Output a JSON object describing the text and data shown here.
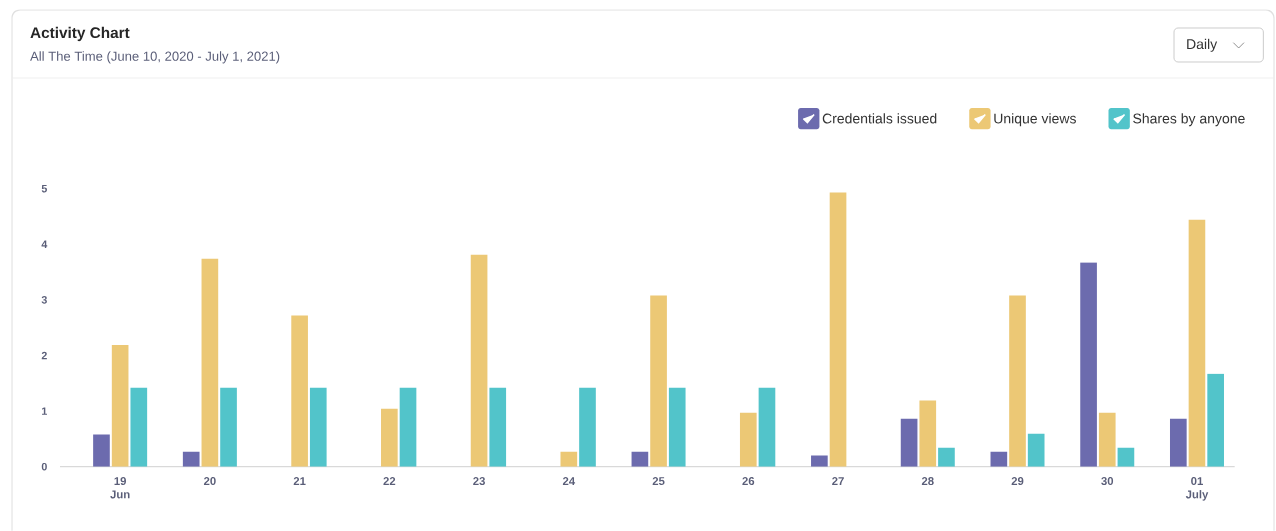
{
  "chart_data": {
    "type": "bar",
    "title": "Activity Chart",
    "subtitle": "All The Time (June 10, 2020 - July 1, 2021)",
    "annotations": [
      "Daily"
    ],
    "categories": [
      "19 Jun",
      "20",
      "21",
      "22",
      "23",
      "24",
      "25",
      "26",
      "27",
      "28",
      "29",
      "30",
      "01 July"
    ],
    "series": [
      {
        "name": "Credentials issued",
        "color": "#6c6bae",
        "values": [
          0.58,
          0.27,
          null,
          null,
          null,
          null,
          0.27,
          null,
          0.2,
          0.86,
          0.27,
          3.67,
          0.86
        ]
      },
      {
        "name": "Unique views",
        "color": "#ecc875",
        "values": [
          2.19,
          3.74,
          2.72,
          1.04,
          3.81,
          0.27,
          3.08,
          0.97,
          4.93,
          1.19,
          3.08,
          0.97,
          4.44
        ]
      },
      {
        "name": "Shares by anyone",
        "color": "#52c4ca",
        "values": [
          1.42,
          1.42,
          1.42,
          1.42,
          1.42,
          1.42,
          1.42,
          1.42,
          null,
          0.34,
          0.59,
          0.34,
          1.67
        ]
      }
    ],
    "ylim": [
      0,
      5
    ],
    "yticks": [
      0,
      1,
      2,
      3,
      4,
      5
    ],
    "legend": "top right"
  }
}
